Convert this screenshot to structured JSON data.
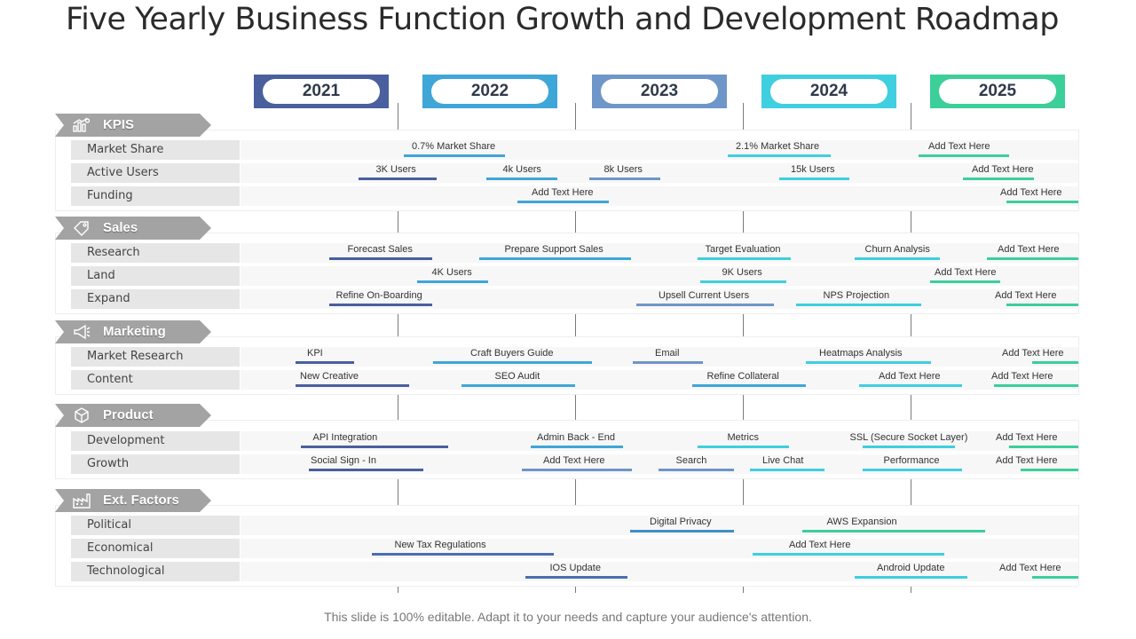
{
  "title": "Five Yearly Business Function  Growth and Development Roadmap",
  "footer": "This slide is 100% editable. Adapt it to your needs and capture your audience's attention.",
  "years": [
    {
      "label": "2021",
      "color": "#4a5f9e"
    },
    {
      "label": "2022",
      "color": "#3fa6d8"
    },
    {
      "label": "2023",
      "color": "#6e96c8"
    },
    {
      "label": "2024",
      "color": "#3fcfe0"
    },
    {
      "label": "2025",
      "color": "#3ccf9a"
    }
  ],
  "sections": [
    {
      "name": "KPIS",
      "icon": "chart-people-icon",
      "rows": [
        {
          "label": "Market Share",
          "tasks": [
            {
              "text": "0.7% Market Share",
              "color": "#3fa6d8"
            },
            {
              "text": "2.1% Market Share",
              "color": "#3fcfe0"
            },
            {
              "text": "Add Text Here",
              "color": "#3ccf9a"
            }
          ]
        },
        {
          "label": "Active Users",
          "tasks": [
            {
              "text": "3K Users",
              "color": "#4a5f9e"
            },
            {
              "text": "4k Users",
              "color": "#3fa6d8"
            },
            {
              "text": "8k Users",
              "color": "#6e96c8"
            },
            {
              "text": "15k Users",
              "color": "#3fcfe0"
            },
            {
              "text": "Add Text Here",
              "color": "#3ccf9a"
            }
          ]
        },
        {
          "label": "Funding",
          "tasks": [
            {
              "text": "Add Text Here",
              "color": "#3fa6d8"
            },
            {
              "text": "Add Text Here",
              "color": "#3ccf9a"
            }
          ]
        }
      ]
    },
    {
      "name": "Sales",
      "icon": "tag-icon",
      "rows": [
        {
          "label": "Research",
          "tasks": [
            {
              "text": "Forecast Sales",
              "color": "#4a5f9e"
            },
            {
              "text": "Prepare Support Sales",
              "color": "#3fa6d8"
            },
            {
              "text": "Target Evaluation",
              "color": "#3fcfe0"
            },
            {
              "text": "Churn Analysis",
              "color": "#3fcfe0"
            },
            {
              "text": "Add Text Here",
              "color": "#3ccf9a"
            }
          ]
        },
        {
          "label": "Land",
          "tasks": [
            {
              "text": "4K Users",
              "color": "#3fa6d8"
            },
            {
              "text": "9K Users",
              "color": "#3fcfe0"
            },
            {
              "text": "Add Text Here",
              "color": "#3ccf9a"
            }
          ]
        },
        {
          "label": "Expand",
          "tasks": [
            {
              "text": "Refine On-Boarding",
              "color": "#4a5f9e"
            },
            {
              "text": "Upsell Current Users",
              "color": "#6e96c8"
            },
            {
              "text": "NPS  Projection",
              "color": "#3fcfe0"
            },
            {
              "text": "Add Text Here",
              "color": "#3ccf9a"
            }
          ]
        }
      ]
    },
    {
      "name": "Marketing",
      "icon": "megaphone-icon",
      "rows": [
        {
          "label": "Market Research",
          "tasks": [
            {
              "text": "KPI",
              "color": "#4a5f9e"
            },
            {
              "text": "Craft Buyers Guide",
              "color": "#3fa6d8"
            },
            {
              "text": "Email",
              "color": "#6e96c8"
            },
            {
              "text": "Heatmaps  Analysis",
              "color": "#3fcfe0"
            },
            {
              "text": "Add Text Here",
              "color": "#3ccf9a"
            }
          ]
        },
        {
          "label": "Content",
          "tasks": [
            {
              "text": "New Creative",
              "color": "#4a5f9e"
            },
            {
              "text": "SEO  Audit",
              "color": "#3fa6d8"
            },
            {
              "text": "Refine Collateral",
              "color": "#3fa6d8"
            },
            {
              "text": "Add Text Here",
              "color": "#3fcfe0"
            },
            {
              "text": "Add Text Here",
              "color": "#3ccf9a"
            }
          ]
        }
      ]
    },
    {
      "name": "Product",
      "icon": "box-icon",
      "rows": [
        {
          "label": "Development",
          "tasks": [
            {
              "text": "API Integration",
              "color": "#4a5f9e"
            },
            {
              "text": "Admin Back - End",
              "color": "#3fa6d8"
            },
            {
              "text": "Metrics",
              "color": "#3fcfe0"
            },
            {
              "text": "SSL (Secure Socket Layer)",
              "color": "#3fcfe0"
            },
            {
              "text": "Add Text Here",
              "color": "#3ccf9a"
            }
          ]
        },
        {
          "label": "Growth",
          "tasks": [
            {
              "text": "Social Sign - In",
              "color": "#4a5f9e"
            },
            {
              "text": "Add Text Here",
              "color": "#6e96c8"
            },
            {
              "text": "Search",
              "color": "#6e96c8"
            },
            {
              "text": "Live Chat",
              "color": "#3fcfe0"
            },
            {
              "text": "Performance",
              "color": "#3fcfe0"
            },
            {
              "text": "Add Text Here",
              "color": "#3ccf9a"
            }
          ]
        }
      ]
    },
    {
      "name": "Ext. Factors",
      "icon": "factory-icon",
      "rows": [
        {
          "label": "Political",
          "tasks": [
            {
              "text": "Digital  Privacy",
              "color": "#3f8fc8"
            },
            {
              "text": "AWS Expansion",
              "color": "#3ccf9a"
            }
          ]
        },
        {
          "label": "Economical",
          "tasks": [
            {
              "text": "New Tax Regulations",
              "color": "#4a6fae"
            },
            {
              "text": "Add Text Here",
              "color": "#3fcfe0"
            }
          ]
        },
        {
          "label": "Technological",
          "tasks": [
            {
              "text": "IOS Update",
              "color": "#4a6fae"
            },
            {
              "text": "Android Update",
              "color": "#3fcfe0"
            },
            {
              "text": "Add Text Here",
              "color": "#3ccf9a"
            }
          ]
        }
      ]
    }
  ]
}
